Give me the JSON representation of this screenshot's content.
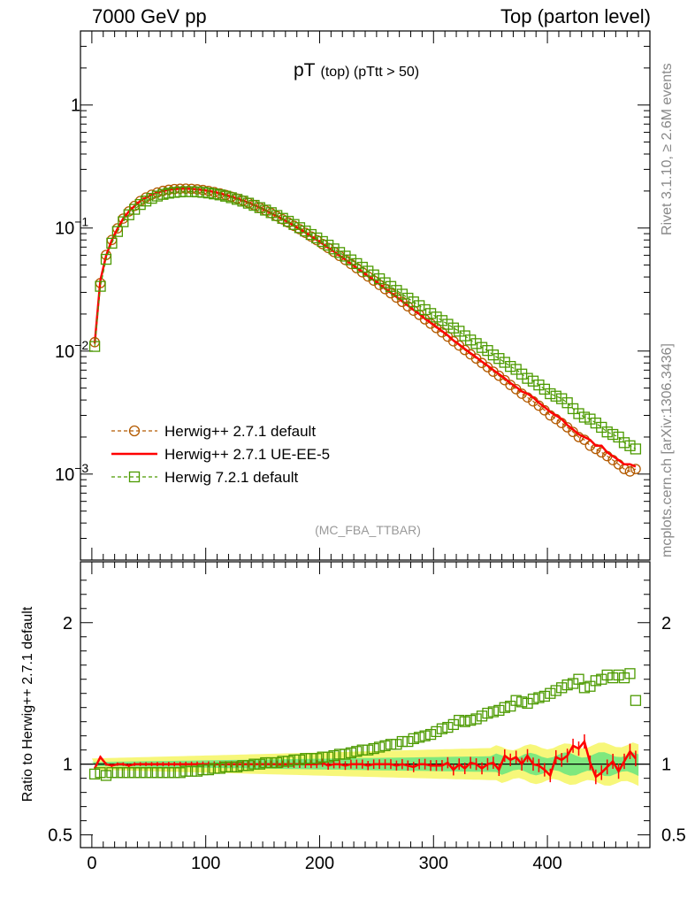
{
  "header": {
    "left": "7000 GeV pp",
    "right": "Top (parton level)"
  },
  "side_text": {
    "rivet": "Rivet 3.1.10, ≥ 2.6M events",
    "mcplots": "mcplots.cern.ch [arXiv:1306.3436]"
  },
  "colors": {
    "herwigpp_default": "#b35a00",
    "herwigpp_ueee5": "#ff0000",
    "herwig721": "#4c9a00",
    "band_green": "#7ee87e",
    "band_yellow": "#f7f77a"
  },
  "chart_data": [
    {
      "type": "line",
      "panel": "main",
      "title": "pT",
      "title_sub": "(top) (pTtt > 50)",
      "watermark": "(MC_FBA_TTBAR)",
      "yscale": "log",
      "xlim": [
        -10,
        490
      ],
      "ylim": [
        0.0002,
        4
      ],
      "yticks": [
        {
          "value": 1,
          "label": "1"
        },
        {
          "value": 0.1,
          "label": "10",
          "exp": "−1"
        },
        {
          "value": 0.01,
          "label": "10",
          "exp": "−2"
        },
        {
          "value": 0.001,
          "label": "10",
          "exp": "−3"
        }
      ],
      "legend_position": "bottom-left",
      "x": [
        2.5,
        7.5,
        12.5,
        17.5,
        22.5,
        27.5,
        32.5,
        37.5,
        42.5,
        47.5,
        52.5,
        57.5,
        62.5,
        67.5,
        72.5,
        77.5,
        82.5,
        87.5,
        92.5,
        97.5,
        102.5,
        107.5,
        112.5,
        117.5,
        122.5,
        127.5,
        132.5,
        137.5,
        142.5,
        147.5,
        152.5,
        157.5,
        162.5,
        167.5,
        172.5,
        177.5,
        182.5,
        187.5,
        192.5,
        197.5,
        202.5,
        207.5,
        212.5,
        217.5,
        222.5,
        227.5,
        232.5,
        237.5,
        242.5,
        247.5,
        252.5,
        257.5,
        262.5,
        267.5,
        272.5,
        277.5,
        282.5,
        287.5,
        292.5,
        297.5,
        302.5,
        307.5,
        312.5,
        317.5,
        322.5,
        327.5,
        332.5,
        337.5,
        342.5,
        347.5,
        352.5,
        357.5,
        362.5,
        367.5,
        372.5,
        377.5,
        382.5,
        387.5,
        392.5,
        397.5,
        402.5,
        407.5,
        412.5,
        417.5,
        422.5,
        427.5,
        432.5,
        437.5,
        442.5,
        447.5,
        452.5,
        457.5,
        462.5,
        467.5,
        472.5,
        477.5
      ],
      "series": [
        {
          "name": "Herwig++ 2.7.1 default",
          "style": "dashed-circle",
          "color_key": "herwigpp_default",
          "values": [
            0.0118,
            0.0357,
            0.0604,
            0.08,
            0.0994,
            0.1194,
            0.1365,
            0.1514,
            0.1658,
            0.1772,
            0.1866,
            0.1945,
            0.2005,
            0.2047,
            0.2074,
            0.2088,
            0.2091,
            0.2083,
            0.2064,
            0.2037,
            0.2002,
            0.1959,
            0.1911,
            0.1857,
            0.1798,
            0.1736,
            0.1671,
            0.1603,
            0.1533,
            0.1462,
            0.1391,
            0.1319,
            0.1248,
            0.1178,
            0.1109,
            0.1042,
            0.0977,
            0.0914,
            0.0853,
            0.0796,
            0.0741,
            0.0689,
            0.064,
            0.0594,
            0.0551,
            0.051,
            0.0472,
            0.0437,
            0.0404,
            0.0374,
            0.0345,
            0.0319,
            0.0295,
            0.0272,
            0.0251,
            0.0231,
            0.0213,
            0.0197,
            0.0181,
            0.0167,
            0.0154,
            0.0142,
            0.0131,
            0.012,
            0.0111,
            0.0102,
            0.0094,
            0.0087,
            0.008,
            0.0074,
            0.0068,
            0.0063,
            0.0058,
            0.0053,
            0.0049,
            0.0045,
            0.0042,
            0.0039,
            0.0036,
            0.0033,
            0.003,
            0.0028,
            0.0026,
            0.0024,
            0.0022,
            0.002,
            0.0019,
            0.0017,
            0.0016,
            0.0015,
            0.0014,
            0.0013,
            0.0012,
            0.0011,
            0.00105,
            0.0011
          ]
        },
        {
          "name": "Herwig++ 2.7.1 UE-EE-5",
          "style": "solid",
          "color_key": "herwigpp_ueee5",
          "values": [
            0.0115,
            0.0375,
            0.0595,
            0.0795,
            0.099,
            0.119,
            0.1362,
            0.1512,
            0.1655,
            0.177,
            0.1864,
            0.1943,
            0.2004,
            0.2046,
            0.2072,
            0.2086,
            0.2092,
            0.2083,
            0.2065,
            0.2038,
            0.2003,
            0.1962,
            0.1914,
            0.1859,
            0.18,
            0.1739,
            0.1673,
            0.1606,
            0.1536,
            0.1465,
            0.1394,
            0.1322,
            0.1251,
            0.1182,
            0.1112,
            0.1046,
            0.0981,
            0.0918,
            0.0857,
            0.0799,
            0.0745,
            0.0692,
            0.0643,
            0.0597,
            0.0554,
            0.0513,
            0.0475,
            0.044,
            0.0406,
            0.0377,
            0.0349,
            0.0322,
            0.0298,
            0.0276,
            0.0254,
            0.0234,
            0.0216,
            0.02,
            0.0183,
            0.017,
            0.0157,
            0.0145,
            0.0134,
            0.0122,
            0.0113,
            0.0104,
            0.0096,
            0.0089,
            0.0082,
            0.0076,
            0.007,
            0.0065,
            0.006,
            0.0055,
            0.0051,
            0.0047,
            0.0045,
            0.0042,
            0.0038,
            0.0035,
            0.0032,
            0.003,
            0.0028,
            0.0025,
            0.0023,
            0.0021,
            0.002,
            0.0019,
            0.0017,
            0.0017,
            0.0015,
            0.0014,
            0.0013,
            0.0012,
            0.0012,
            0.00115
          ]
        },
        {
          "name": "Herwig 7.2.1 default",
          "style": "dashed-square",
          "color_key": "herwig721",
          "values": [
            0.0109,
            0.0336,
            0.0557,
            0.0753,
            0.0937,
            0.1125,
            0.1282,
            0.142,
            0.1554,
            0.1658,
            0.1745,
            0.182,
            0.1878,
            0.1921,
            0.1949,
            0.1967,
            0.1977,
            0.1976,
            0.1967,
            0.1951,
            0.1927,
            0.1894,
            0.186,
            0.1815,
            0.1765,
            0.1711,
            0.1655,
            0.1593,
            0.153,
            0.1465,
            0.1399,
            0.1334,
            0.1265,
            0.1199,
            0.1135,
            0.1069,
            0.1007,
            0.0946,
            0.0886,
            0.0831,
            0.0777,
            0.0726,
            0.0677,
            0.0633,
            0.0591,
            0.0551,
            0.0514,
            0.048,
            0.0446,
            0.0416,
            0.0387,
            0.0359,
            0.0335,
            0.0311,
            0.029,
            0.0269,
            0.0251,
            0.0234,
            0.0217,
            0.0202,
            0.0189,
            0.0177,
            0.0165,
            0.0154,
            0.0145,
            0.0133,
            0.0123,
            0.0115,
            0.0107,
            0.0101,
            0.0093,
            0.0087,
            0.0081,
            0.0075,
            0.0071,
            0.0065,
            0.006,
            0.0057,
            0.0053,
            0.0049,
            0.0045,
            0.0043,
            0.0041,
            0.0038,
            0.0034,
            0.0031,
            0.0029,
            0.0028,
            0.0026,
            0.0024,
            0.0022,
            0.0021,
            0.002,
            0.0018,
            0.0017,
            0.0016
          ]
        }
      ]
    },
    {
      "type": "line",
      "panel": "ratio",
      "ylabel": "Ratio to Herwig++ 2.7.1 default",
      "xlim": [
        -10,
        490
      ],
      "ylim": [
        0.41,
        2.43
      ],
      "yticks": [
        {
          "value": 0.5,
          "label": "0.5"
        },
        {
          "value": 1,
          "label": "1"
        },
        {
          "value": 2,
          "label": "2"
        }
      ],
      "xticks": [
        0,
        100,
        200,
        300,
        400
      ],
      "band_green_halfwidth_start": 0.015,
      "band_green_halfwidth_end": 0.07,
      "band_yellow_halfwidth_start": 0.04,
      "band_yellow_halfwidth_end": 0.14,
      "series": [
        {
          "name": "Herwig++ 2.7.1 UE-EE-5",
          "color_key": "herwigpp_ueee5",
          "values": [
            0.97,
            1.05,
            1.0,
            0.99,
            1.0,
            1.0,
            0.99,
            1.0,
            1.0,
            1.0,
            1.0,
            1.0,
            1.0,
            1.0,
            1.0,
            1.0,
            1.0,
            1.0,
            1.0,
            1.0,
            1.0,
            1.0,
            1.0,
            1.0,
            1.0,
            1.0,
            1.0,
            1.0,
            1.0,
            1.0,
            1.0,
            1.0,
            1.0,
            1.0,
            1.0,
            1.0,
            1.0,
            1.0,
            1.0,
            1.0,
            1.01,
            0.99,
            1.0,
            1.0,
            0.99,
            1.0,
            1.0,
            1.0,
            0.99,
            1.0,
            1.0,
            1.0,
            1.0,
            0.99,
            1.0,
            0.99,
            0.98,
            1.0,
            1.0,
            0.99,
            0.99,
            0.99,
            1.01,
            0.96,
            1.0,
            0.97,
            1.01,
            1.0,
            0.97,
            1.0,
            1.01,
            0.96,
            1.06,
            1.03,
            1.05,
            1.0,
            1.06,
            1.0,
            0.99,
            0.96,
            0.92,
            1.05,
            1.03,
            1.06,
            1.13,
            1.11,
            1.16,
            1.01,
            0.91,
            0.94,
            0.98,
            1.02,
            0.95,
            1.02,
            1.09,
            1.04
          ]
        },
        {
          "name": "Herwig 7.2.1 default",
          "color_key": "herwig721",
          "values": [
            0.93,
            0.94,
            0.92,
            0.94,
            0.94,
            0.94,
            0.94,
            0.94,
            0.94,
            0.94,
            0.94,
            0.94,
            0.94,
            0.94,
            0.94,
            0.94,
            0.95,
            0.95,
            0.95,
            0.96,
            0.96,
            0.97,
            0.97,
            0.98,
            0.98,
            0.98,
            0.99,
            0.99,
            1.0,
            1.0,
            1.01,
            1.01,
            1.01,
            1.02,
            1.02,
            1.03,
            1.03,
            1.04,
            1.04,
            1.04,
            1.05,
            1.05,
            1.06,
            1.07,
            1.07,
            1.08,
            1.09,
            1.1,
            1.1,
            1.11,
            1.12,
            1.13,
            1.14,
            1.14,
            1.16,
            1.16,
            1.18,
            1.19,
            1.2,
            1.21,
            1.23,
            1.25,
            1.26,
            1.28,
            1.31,
            1.3,
            1.31,
            1.32,
            1.34,
            1.36,
            1.37,
            1.38,
            1.4,
            1.41,
            1.45,
            1.44,
            1.43,
            1.46,
            1.47,
            1.48,
            1.5,
            1.52,
            1.54,
            1.56,
            1.57,
            1.6,
            1.54,
            1.55,
            1.59,
            1.6,
            1.63,
            1.61,
            1.63,
            1.61,
            1.64,
            1.45
          ]
        }
      ]
    }
  ]
}
